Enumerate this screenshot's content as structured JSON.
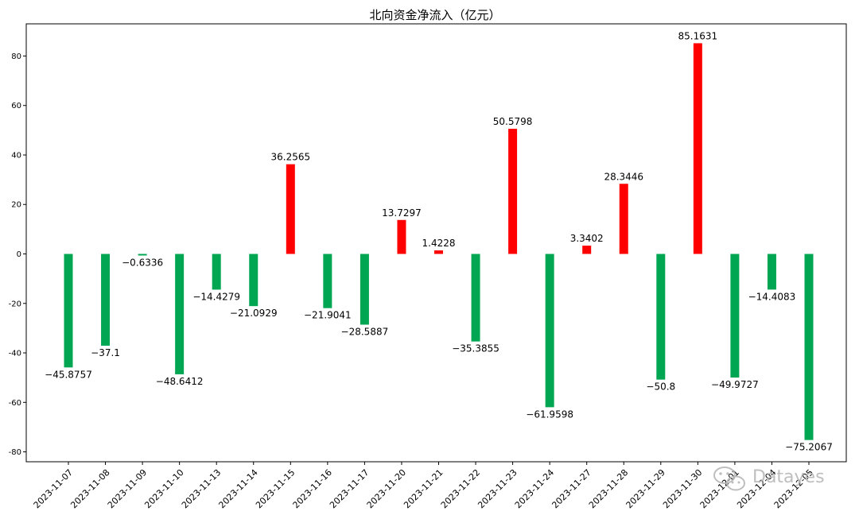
{
  "chart_data": {
    "type": "bar",
    "title": "北向资金净流入（亿元）",
    "xlabel": "",
    "ylabel": "",
    "ylim": [
      -84,
      93
    ],
    "yticks": [
      -80,
      -60,
      -40,
      -20,
      0,
      20,
      40,
      60,
      80
    ],
    "grid": false,
    "positive_color": "#ff0000",
    "negative_color": "#00a651",
    "categories": [
      "2023-11-07",
      "2023-11-08",
      "2023-11-09",
      "2023-11-10",
      "2023-11-13",
      "2023-11-14",
      "2023-11-15",
      "2023-11-16",
      "2023-11-17",
      "2023-11-20",
      "2023-11-21",
      "2023-11-22",
      "2023-11-23",
      "2023-11-24",
      "2023-11-27",
      "2023-11-28",
      "2023-11-29",
      "2023-11-30",
      "2023-12-01",
      "2023-12-04",
      "2023-12-05"
    ],
    "values": [
      -45.8757,
      -37.1,
      -0.6336,
      -48.6412,
      -14.4279,
      -21.0929,
      36.2565,
      -21.9041,
      -28.5887,
      13.7297,
      1.4228,
      -35.3855,
      50.5798,
      -61.9598,
      3.3402,
      28.3446,
      -50.8,
      85.1631,
      -49.9727,
      -14.4083,
      -75.2067
    ]
  },
  "watermark": {
    "text": "Datayes",
    "icon": "wechat-icon"
  }
}
